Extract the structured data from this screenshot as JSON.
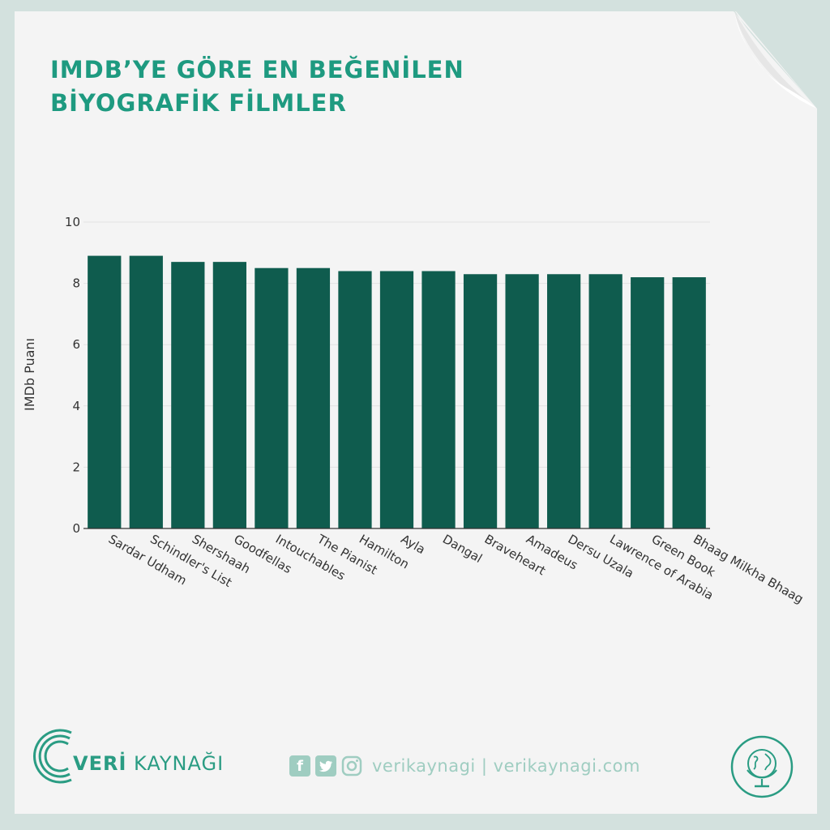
{
  "title": "IMDB’YE GÖRE EN BEĞENİLEN\nBİYOGRAFİK FİLMLER",
  "chart_data": {
    "type": "bar",
    "categories": [
      "Sardar Udham",
      "Schindler's List",
      "Shershaah",
      "Goodfellas",
      "Intouchables",
      "The Pianist",
      "Hamilton",
      "Ayla",
      "Dangal",
      "Braveheart",
      "Amadeus",
      "Dersu Uzala",
      "Lawrence of Arabia",
      "Green Book",
      "Bhaag Milkha Bhaag"
    ],
    "values": [
      8.9,
      8.9,
      8.7,
      8.7,
      8.5,
      8.5,
      8.4,
      8.4,
      8.4,
      8.3,
      8.3,
      8.3,
      8.3,
      8.2,
      8.2
    ],
    "xlabel": "",
    "ylabel": "IMDb Puanı",
    "ylim": [
      0,
      10
    ],
    "yticks": [
      0,
      2,
      4,
      6,
      8,
      10
    ],
    "grid": true,
    "bar_color": "#0f5c4e"
  },
  "footer": {
    "brand_bold": "VERİ",
    "brand_rest": " KAYNAĞI",
    "social_text": "verikaynagi | verikaynagi.com",
    "icons": [
      "facebook-icon",
      "twitter-icon",
      "instagram-icon"
    ]
  }
}
